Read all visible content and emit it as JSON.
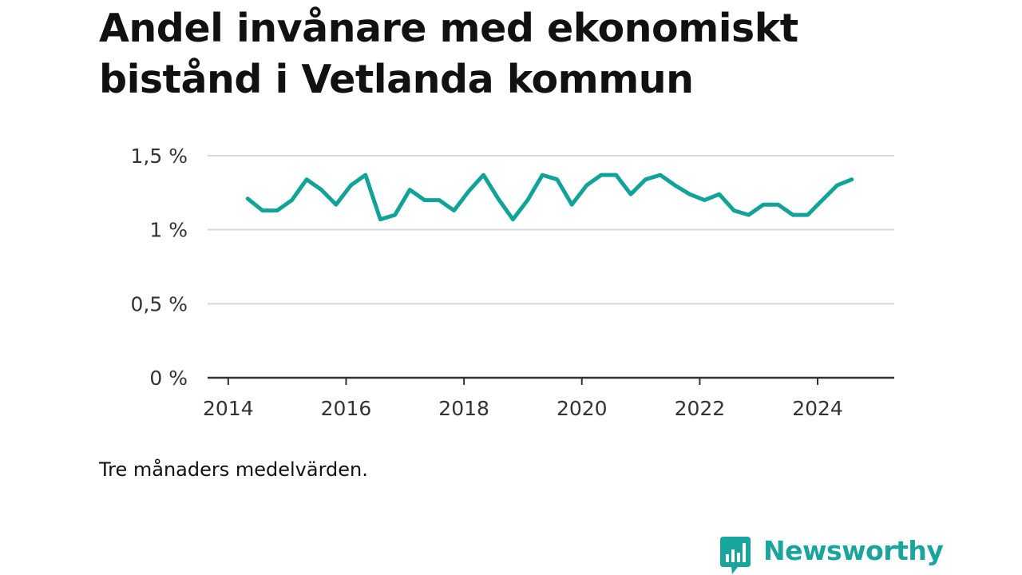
{
  "title": "Andel invånare med ekonomiskt bistånd i Vetlanda kommun",
  "note": "Tre månaders medelvärden.",
  "brand": {
    "name": "Newsworthy",
    "color": "#1aa59c",
    "logo_icon": "newsworthy-chart-bubble-icon"
  },
  "colors": {
    "line": "#12a398",
    "grid": "#d9d9d9",
    "axis": "#333333",
    "text": "#111111",
    "tick_text": "#333333"
  },
  "chart_data": {
    "type": "line",
    "title": "Andel invånare med ekonomiskt bistånd i Vetlanda kommun",
    "xlabel": "",
    "ylabel": "",
    "x_axis": {
      "type": "time",
      "range": [
        2013.65,
        2025.3
      ],
      "ticks": [
        2014,
        2016,
        2018,
        2020,
        2022,
        2024
      ],
      "tick_labels": [
        "2014",
        "2016",
        "2018",
        "2020",
        "2022",
        "2024"
      ]
    },
    "y_axis": {
      "range": [
        0,
        1.5
      ],
      "ticks": [
        0,
        0.5,
        1,
        1.5
      ],
      "tick_labels": [
        "0 %",
        "0,5 %",
        "1 %",
        "1,5 %"
      ],
      "unit": "%"
    },
    "grid": {
      "horizontal": true,
      "vertical": false
    },
    "legend": "none",
    "series": [
      {
        "x": [
          2014.33,
          2014.58,
          2014.83,
          2015.08,
          2015.33,
          2015.58,
          2015.83,
          2016.08,
          2016.33,
          2016.58,
          2016.83,
          2017.08,
          2017.33,
          2017.58,
          2017.83,
          2018.08,
          2018.33,
          2018.58,
          2018.83,
          2019.08,
          2019.33,
          2019.58,
          2019.83,
          2020.08,
          2020.33,
          2020.58,
          2020.83,
          2021.08,
          2021.33,
          2021.58,
          2021.83,
          2022.08,
          2022.33,
          2022.58,
          2022.83,
          2023.08,
          2023.33,
          2023.58,
          2023.83,
          2024.08,
          2024.33,
          2024.58
        ],
        "values": [
          1.21,
          1.13,
          1.13,
          1.2,
          1.34,
          1.27,
          1.17,
          1.3,
          1.37,
          1.07,
          1.1,
          1.27,
          1.2,
          1.2,
          1.13,
          1.26,
          1.37,
          1.21,
          1.07,
          1.2,
          1.37,
          1.34,
          1.17,
          1.3,
          1.37,
          1.37,
          1.24,
          1.34,
          1.37,
          1.3,
          1.24,
          1.2,
          1.24,
          1.13,
          1.1,
          1.17,
          1.17,
          1.1,
          1.1,
          1.2,
          1.3,
          1.34
        ]
      }
    ]
  }
}
